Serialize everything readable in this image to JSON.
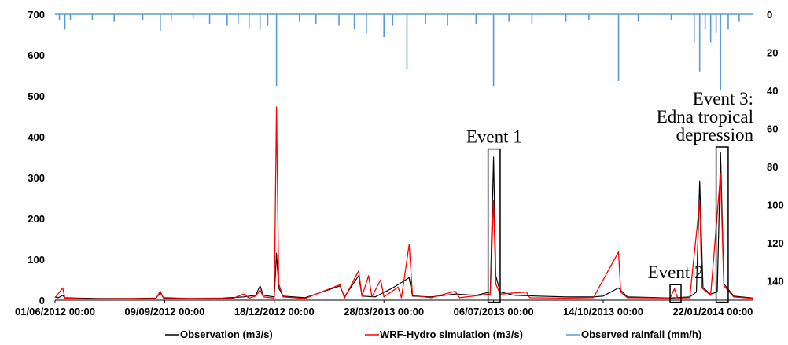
{
  "chart_data": {
    "type": "line",
    "title": "",
    "y_left": {
      "min": 0,
      "max": 700,
      "ticks": [
        0,
        100,
        200,
        300,
        400,
        500,
        600,
        700
      ]
    },
    "y_right": {
      "min": 0,
      "max": 150,
      "inverted": true,
      "ticks": [
        0,
        20,
        40,
        60,
        80,
        100,
        120,
        140
      ]
    },
    "x_axis": {
      "start": "2012-06-01T00:00",
      "end": "2014-02-28T00:00",
      "ticks": [
        {
          "date": "2012-06-01T00:00",
          "label": "01/06/2012 00:00"
        },
        {
          "date": "2012-09-09T00:00",
          "label": "09/09/2012 00:00"
        },
        {
          "date": "2012-12-18T00:00",
          "label": "18/12/2012 00:00"
        },
        {
          "date": "2013-03-28T00:00",
          "label": "28/03/2013 00:00"
        },
        {
          "date": "2013-07-06T00:00",
          "label": "06/07/2013 00:00"
        },
        {
          "date": "2013-10-14T00:00",
          "label": "14/10/2013 00:00"
        },
        {
          "date": "2014-01-22T00:00",
          "label": "22/01/2014 00:00"
        }
      ]
    },
    "series": [
      {
        "name": "Observation (m3/s)",
        "color": "#000000",
        "axis": "left",
        "points": [
          [
            "2012-06-01",
            8
          ],
          [
            "2012-06-04",
            6
          ],
          [
            "2012-06-08",
            12
          ],
          [
            "2012-06-10",
            6
          ],
          [
            "2012-06-20",
            5
          ],
          [
            "2012-07-10",
            4
          ],
          [
            "2012-08-10",
            4
          ],
          [
            "2012-09-01",
            5
          ],
          [
            "2012-09-05",
            18
          ],
          [
            "2012-09-08",
            6
          ],
          [
            "2012-10-01",
            4
          ],
          [
            "2012-11-01",
            5
          ],
          [
            "2012-11-20",
            8
          ],
          [
            "2012-12-01",
            12
          ],
          [
            "2012-12-05",
            35
          ],
          [
            "2012-12-08",
            12
          ],
          [
            "2012-12-18",
            8
          ],
          [
            "2012-12-20",
            115
          ],
          [
            "2012-12-22",
            30
          ],
          [
            "2012-12-26",
            10
          ],
          [
            "2013-01-15",
            6
          ],
          [
            "2013-02-16",
            35
          ],
          [
            "2013-02-20",
            8
          ],
          [
            "2013-03-05",
            60
          ],
          [
            "2013-03-08",
            10
          ],
          [
            "2013-03-20",
            8
          ],
          [
            "2013-04-05",
            30
          ],
          [
            "2013-04-20",
            55
          ],
          [
            "2013-04-23",
            10
          ],
          [
            "2013-05-10",
            8
          ],
          [
            "2013-06-01",
            15
          ],
          [
            "2013-06-20",
            12
          ],
          [
            "2013-07-03",
            20
          ],
          [
            "2013-07-06",
            350
          ],
          [
            "2013-07-08",
            60
          ],
          [
            "2013-07-12",
            20
          ],
          [
            "2013-07-25",
            12
          ],
          [
            "2013-08-15",
            10
          ],
          [
            "2013-09-10",
            8
          ],
          [
            "2013-10-05",
            8
          ],
          [
            "2013-10-14",
            10
          ],
          [
            "2013-10-28",
            30
          ],
          [
            "2013-11-05",
            8
          ],
          [
            "2013-12-05",
            6
          ],
          [
            "2013-12-14",
            5
          ],
          [
            "2014-01-01",
            8
          ],
          [
            "2014-01-07",
            20
          ],
          [
            "2014-01-10",
            292
          ],
          [
            "2014-01-13",
            30
          ],
          [
            "2014-01-20",
            15
          ],
          [
            "2014-01-26",
            20
          ],
          [
            "2014-01-29",
            362
          ],
          [
            "2014-02-01",
            40
          ],
          [
            "2014-02-10",
            10
          ],
          [
            "2014-02-28",
            5
          ]
        ]
      },
      {
        "name": "WRF-Hydro simulation (m3/s)",
        "color": "#ff0000",
        "axis": "left",
        "points": [
          [
            "2012-06-01",
            6
          ],
          [
            "2012-06-08",
            30
          ],
          [
            "2012-06-10",
            5
          ],
          [
            "2012-07-01",
            3
          ],
          [
            "2012-09-01",
            4
          ],
          [
            "2012-09-05",
            22
          ],
          [
            "2012-09-08",
            4
          ],
          [
            "2012-11-10",
            4
          ],
          [
            "2012-11-20",
            15
          ],
          [
            "2012-11-25",
            5
          ],
          [
            "2012-12-01",
            10
          ],
          [
            "2012-12-05",
            25
          ],
          [
            "2012-12-08",
            8
          ],
          [
            "2012-12-18",
            5
          ],
          [
            "2012-12-20",
            473
          ],
          [
            "2012-12-22",
            40
          ],
          [
            "2012-12-26",
            8
          ],
          [
            "2013-01-15",
            4
          ],
          [
            "2013-02-16",
            38
          ],
          [
            "2013-02-20",
            5
          ],
          [
            "2013-03-05",
            72
          ],
          [
            "2013-03-08",
            10
          ],
          [
            "2013-03-14",
            60
          ],
          [
            "2013-03-17",
            8
          ],
          [
            "2013-03-25",
            50
          ],
          [
            "2013-03-28",
            8
          ],
          [
            "2013-04-10",
            32
          ],
          [
            "2013-04-13",
            6
          ],
          [
            "2013-04-20",
            137
          ],
          [
            "2013-04-23",
            12
          ],
          [
            "2013-05-10",
            6
          ],
          [
            "2013-06-01",
            22
          ],
          [
            "2013-06-05",
            6
          ],
          [
            "2013-07-03",
            15
          ],
          [
            "2013-07-06",
            245
          ],
          [
            "2013-07-08",
            40
          ],
          [
            "2013-07-12",
            15
          ],
          [
            "2013-08-05",
            20
          ],
          [
            "2013-08-08",
            6
          ],
          [
            "2013-09-10",
            5
          ],
          [
            "2013-10-05",
            6
          ],
          [
            "2013-10-28",
            118
          ],
          [
            "2013-10-30",
            20
          ],
          [
            "2013-11-05",
            6
          ],
          [
            "2013-12-14",
            5
          ],
          [
            "2013-12-18",
            28
          ],
          [
            "2013-12-21",
            5
          ],
          [
            "2014-01-01",
            6
          ],
          [
            "2014-01-10",
            240
          ],
          [
            "2014-01-12",
            30
          ],
          [
            "2014-01-20",
            12
          ],
          [
            "2014-01-29",
            310
          ],
          [
            "2014-02-01",
            35
          ],
          [
            "2014-02-10",
            8
          ],
          [
            "2014-02-28",
            4
          ]
        ]
      },
      {
        "name": "Observed rainfall (mm/h)",
        "color": "#5b9bd5",
        "axis": "right",
        "type": "bar",
        "points": [
          [
            "2012-06-05",
            3
          ],
          [
            "2012-06-10",
            8
          ],
          [
            "2012-06-15",
            3
          ],
          [
            "2012-07-05",
            3
          ],
          [
            "2012-07-25",
            4
          ],
          [
            "2012-08-20",
            3
          ],
          [
            "2012-09-05",
            9
          ],
          [
            "2012-09-15",
            3
          ],
          [
            "2012-10-05",
            2
          ],
          [
            "2012-10-20",
            5
          ],
          [
            "2012-11-05",
            6
          ],
          [
            "2012-11-15",
            5
          ],
          [
            "2012-11-25",
            7
          ],
          [
            "2012-12-05",
            8
          ],
          [
            "2012-12-12",
            6
          ],
          [
            "2012-12-20",
            38
          ],
          [
            "2013-01-10",
            4
          ],
          [
            "2013-01-25",
            5
          ],
          [
            "2013-02-15",
            6
          ],
          [
            "2013-03-01",
            8
          ],
          [
            "2013-03-12",
            10
          ],
          [
            "2013-03-28",
            12
          ],
          [
            "2013-04-05",
            6
          ],
          [
            "2013-04-18",
            29
          ],
          [
            "2013-05-05",
            5
          ],
          [
            "2013-05-25",
            6
          ],
          [
            "2013-06-20",
            5
          ],
          [
            "2013-07-06",
            38
          ],
          [
            "2013-07-20",
            4
          ],
          [
            "2013-08-10",
            5
          ],
          [
            "2013-09-10",
            4
          ],
          [
            "2013-10-01",
            3
          ],
          [
            "2013-10-28",
            35
          ],
          [
            "2013-11-15",
            4
          ],
          [
            "2013-12-15",
            3
          ],
          [
            "2014-01-05",
            15
          ],
          [
            "2014-01-10",
            30
          ],
          [
            "2014-01-15",
            8
          ],
          [
            "2014-01-20",
            15
          ],
          [
            "2014-01-25",
            10
          ],
          [
            "2014-01-29",
            40
          ],
          [
            "2014-02-05",
            8
          ],
          [
            "2014-02-15",
            4
          ]
        ]
      }
    ],
    "annotations": [
      {
        "text_lines": [
          "Event 1"
        ],
        "box_start": "2013-07-01",
        "box_end": "2013-07-12",
        "box_y_low": -5,
        "box_y_high": 370
      },
      {
        "text_lines": [
          "Event 2"
        ],
        "box_start": "2013-12-14",
        "box_end": "2013-12-24",
        "box_y_low": -5,
        "box_y_high": 38
      },
      {
        "text_lines": [
          "Event 3:",
          "Edna tropical",
          "depression"
        ],
        "box_start": "2014-01-25",
        "box_end": "2014-02-05",
        "box_y_low": -5,
        "box_y_high": 375
      }
    ],
    "legend": {
      "position": "bottom"
    }
  }
}
